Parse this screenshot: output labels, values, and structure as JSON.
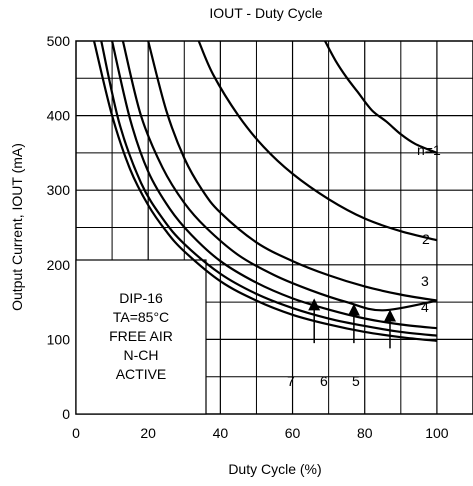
{
  "chart_data": {
    "type": "line",
    "title": "IOUT  -  Duty Cycle",
    "xlabel": "Duty Cycle (%)",
    "ylabel": "Output Current, IOUT (mA)",
    "xlim": [
      0,
      110
    ],
    "ylim": [
      0,
      500
    ],
    "x_ticks": [
      "0",
      "20",
      "40",
      "60",
      "80",
      "100"
    ],
    "y_ticks": [
      "0",
      "100",
      "200",
      "300",
      "400",
      "500"
    ],
    "grid": true,
    "annotation": {
      "line1": "DIP-16",
      "line2": "TA=85°C",
      "line3": "FREE AIR",
      "line4": "N-CH",
      "line5": "ACTIVE"
    },
    "series": [
      {
        "name": "n=1",
        "x": [
          69,
          72,
          75,
          78,
          82,
          86,
          90,
          94,
          100
        ],
        "y": [
          500,
          473,
          451,
          432,
          407,
          392,
          375,
          362,
          350
        ]
      },
      {
        "name": "2",
        "x": [
          34,
          38,
          45,
          52,
          60,
          70,
          80,
          90,
          100
        ],
        "y": [
          500,
          455,
          400,
          358,
          322,
          288,
          262,
          245,
          233
        ]
      },
      {
        "name": "3",
        "x": [
          20,
          25,
          30,
          35,
          40,
          50,
          60,
          70,
          80,
          90,
          100
        ],
        "y": [
          500,
          407,
          343,
          300,
          270,
          230,
          205,
          186,
          171,
          160,
          152
        ]
      },
      {
        "name": "4",
        "x": [
          13,
          18,
          24,
          30,
          36,
          45,
          55,
          65,
          75,
          85,
          100
        ],
        "y": [
          500,
          400,
          330,
          283,
          250,
          213,
          186,
          166,
          150,
          139,
          152
        ]
      },
      {
        "name": "5",
        "x": [
          10,
          15,
          20,
          26,
          32,
          40,
          50,
          60,
          70,
          80,
          90,
          100
        ],
        "y": [
          500,
          395,
          325,
          275,
          240,
          205,
          176,
          155,
          140,
          128,
          120,
          115
        ]
      },
      {
        "name": "6",
        "x": [
          7,
          12,
          18,
          24,
          30,
          40,
          50,
          60,
          70,
          80,
          90,
          100
        ],
        "y": [
          500,
          390,
          310,
          262,
          228,
          188,
          161,
          142,
          128,
          118,
          110,
          105
        ]
      },
      {
        "name": "7",
        "x": [
          5,
          10,
          15,
          20,
          25,
          30,
          40,
          50,
          60,
          70,
          80,
          90,
          100
        ],
        "y": [
          500,
          400,
          328,
          280,
          245,
          218,
          178,
          152,
          133,
          120,
          110,
          103,
          98
        ]
      }
    ],
    "curve_labels": [
      "n=1",
      "2",
      "3",
      "4",
      "7",
      "6",
      "5"
    ],
    "arrows": [
      {
        "label": "7",
        "x": 66,
        "y_from": 95,
        "y_to": 155
      },
      {
        "label": "6",
        "x": 77,
        "y_from": 95,
        "y_to": 148
      },
      {
        "label": "5",
        "x": 87,
        "y_from": 88,
        "y_to": 140
      }
    ]
  }
}
